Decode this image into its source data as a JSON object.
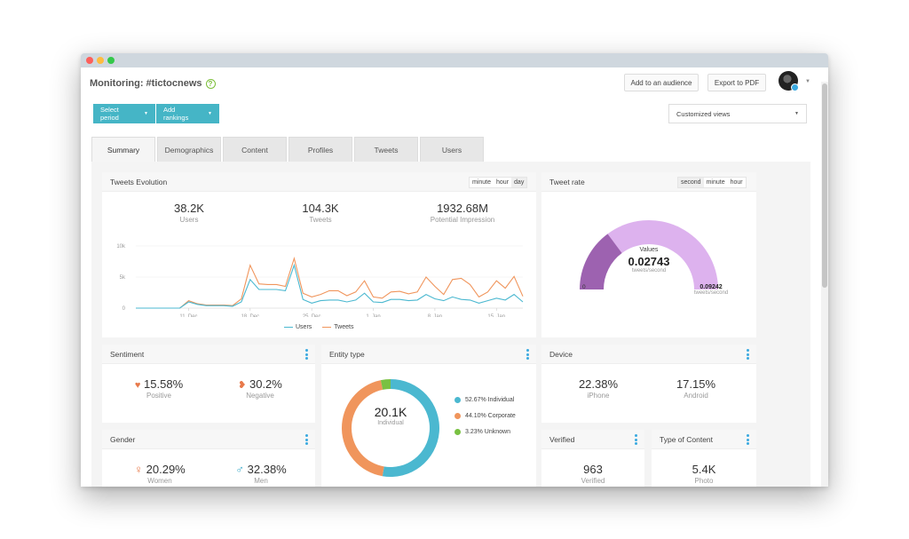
{
  "header": {
    "title": "Monitoring: #tictocnews",
    "add_audience": "Add to an audience",
    "export_pdf": "Export to PDF"
  },
  "toolbar": {
    "select_period": "Select period",
    "add_rankings": "Add rankings",
    "views_select": "Customized views"
  },
  "tabs": [
    {
      "label": "Summary"
    },
    {
      "label": "Demographics"
    },
    {
      "label": "Content"
    },
    {
      "label": "Profiles"
    },
    {
      "label": "Tweets"
    },
    {
      "label": "Users"
    }
  ],
  "tweets_evolution": {
    "title": "Tweets Evolution",
    "ranges": [
      "minute",
      "hour",
      "day"
    ],
    "selected_range": "day",
    "stats": [
      {
        "value": "38.2K",
        "label": "Users"
      },
      {
        "value": "104.3K",
        "label": "Tweets"
      },
      {
        "value": "1932.68M",
        "label": "Potential Impression"
      }
    ]
  },
  "chart_data": {
    "type": "line",
    "x": [
      "5 Dec",
      "6 Dec",
      "7 Dec",
      "8 Dec",
      "9 Dec",
      "10 Dec",
      "11 Dec",
      "12 Dec",
      "13 Dec",
      "14 Dec",
      "15 Dec",
      "16 Dec",
      "17 Dec",
      "18 Dec",
      "19 Dec",
      "20 Dec",
      "21 Dec",
      "22 Dec",
      "23 Dec",
      "24 Dec",
      "25 Dec",
      "26 Dec",
      "27 Dec",
      "28 Dec",
      "29 Dec",
      "30 Dec",
      "31 Dec",
      "1 Jan",
      "2 Jan",
      "3 Jan",
      "4 Jan",
      "5 Jan",
      "6 Jan",
      "7 Jan",
      "8 Jan",
      "9 Jan",
      "10 Jan",
      "11 Jan",
      "12 Jan",
      "13 Jan",
      "14 Jan",
      "15 Jan",
      "16 Jan",
      "17 Jan",
      "18 Jan"
    ],
    "x_ticks": [
      "11. Dec",
      "18. Dec",
      "25. Dec",
      "1. Jan",
      "8. Jan",
      "15. Jan"
    ],
    "y_ticks": [
      "0",
      "5k",
      "10k"
    ],
    "ylim": [
      0,
      10000
    ],
    "series": [
      {
        "name": "Users",
        "color": "#4bb8d0",
        "values": [
          0,
          0,
          0,
          0,
          0,
          0,
          1000,
          600,
          400,
          400,
          400,
          300,
          1000,
          4600,
          3000,
          3000,
          3000,
          2800,
          6900,
          1400,
          800,
          1200,
          1300,
          1300,
          1000,
          1300,
          2400,
          1000,
          900,
          1400,
          1400,
          1200,
          1300,
          2200,
          1500,
          1200,
          1800,
          1400,
          1300,
          800,
          1200,
          1600,
          1300,
          2200,
          1000
        ]
      },
      {
        "name": "Tweets",
        "color": "#f0955c",
        "values": [
          0,
          0,
          0,
          0,
          0,
          0,
          1200,
          700,
          500,
          500,
          500,
          400,
          1500,
          6900,
          3900,
          3800,
          3800,
          3500,
          8000,
          2400,
          1800,
          2200,
          2800,
          2800,
          2000,
          2600,
          4400,
          1800,
          1600,
          2600,
          2700,
          2300,
          2600,
          5000,
          3500,
          2200,
          4600,
          4800,
          3800,
          1800,
          2600,
          4400,
          3200,
          5100,
          1900
        ]
      }
    ]
  },
  "tweet_rate": {
    "title": "Tweet rate",
    "ranges": [
      "second",
      "minute",
      "hour"
    ],
    "selected_range": "second",
    "gauge_caption": "Values",
    "gauge_value": "0.02743",
    "gauge_unit": "tweets/second",
    "gauge_min": "0",
    "gauge_max": "0.09242",
    "gauge_max_unit": "tweets/second",
    "gauge_fill": 0.2968,
    "fill_color": "#9d62b0",
    "track_color": "#ddb2ee"
  },
  "sentiment": {
    "title": "Sentiment",
    "positive_value": "15.58%",
    "positive_label": "Positive",
    "negative_value": "30.2%",
    "negative_label": "Negative"
  },
  "entity_type": {
    "title": "Entity type",
    "center_value": "20.1K",
    "center_label": "Individual",
    "slices": [
      {
        "label": "52.67% Individual",
        "percent": 52.67,
        "color": "#4bb8d0"
      },
      {
        "label": "44.10% Corporate",
        "percent": 44.1,
        "color": "#f0955c"
      },
      {
        "label": "3.23% Unknown",
        "percent": 3.23,
        "color": "#79c142"
      }
    ]
  },
  "device": {
    "title": "Device",
    "iphone_value": "22.38%",
    "iphone_label": "iPhone",
    "android_value": "17.15%",
    "android_label": "Android"
  },
  "gender": {
    "title": "Gender",
    "women_value": "20.29%",
    "women_label": "Women",
    "men_value": "32.38%",
    "men_label": "Men"
  },
  "verified": {
    "title": "Verified",
    "value": "963",
    "label": "Verified"
  },
  "type_of_content": {
    "title": "Type of Content",
    "value": "5.4K",
    "label": "Photo"
  },
  "icons": {
    "positive": "heart-icon",
    "negative": "broken-heart-icon",
    "women": "female-icon",
    "men": "male-icon",
    "help": "help-icon"
  }
}
